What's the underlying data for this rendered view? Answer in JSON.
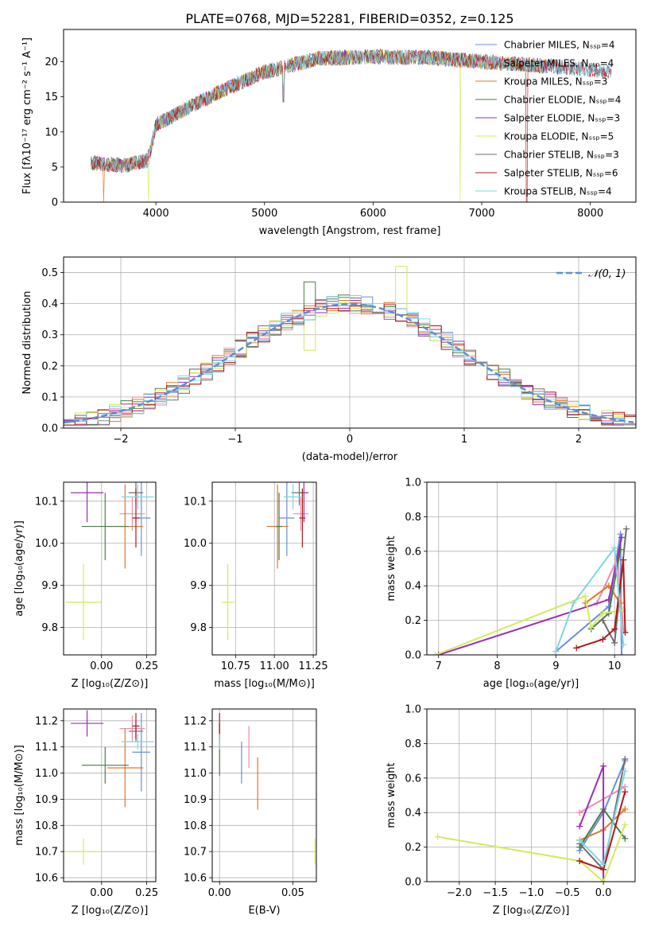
{
  "title": "PLATE=0768, MJD=52281, FIBERID=0352, z=0.125",
  "colors": {
    "Chabrier MILES": "#6a8fd6",
    "Salpeter MILES": "#f08bb0",
    "Kroupa MILES": "#e0782a",
    "Chabrier ELODIE": "#4f7a47",
    "Salpeter ELODIE": "#9b2fb0",
    "Kroupa ELODIE": "#d4ea5a",
    "Chabrier STELIB": "#6e6e6e",
    "Salpeter STELIB": "#b01818",
    "Kroupa STELIB": "#7fd6e2",
    "normal": "#5b8fd6",
    "grid": "#b0b0b0"
  },
  "chart_data": [
    {
      "type": "line",
      "panel": "spectrum",
      "xlabel": "wavelength [Angstrom, rest frame]",
      "ylabel": "Flux [fλ10⁻¹⁷ erg cm⁻² s⁻¹ A⁻¹]",
      "xlim": [
        3150,
        8420
      ],
      "ylim": [
        0,
        24.6
      ],
      "xticks": [
        "4000",
        "5000",
        "6000",
        "7000",
        "8000"
      ],
      "yticks": [
        "0",
        "5",
        "10",
        "15",
        "20"
      ],
      "grid": false,
      "legend_position": "upper right",
      "legend": [
        "Chabrier MILES, Nₛₛₚ=4",
        "Salpeter MILES, Nₛₛₚ=4",
        "Kroupa MILES, Nₛₛₚ=3",
        "Chabrier ELODIE, Nₛₛₚ=4",
        "Salpeter ELODIE, Nₛₛₚ=3",
        "Kroupa ELODIE, Nₛₛₚ=5",
        "Chabrier STELIB, Nₛₛₚ=3",
        "Salpeter STELIB, Nₛₛₚ=6",
        "Kroupa STELIB, Nₛₛₚ=4"
      ],
      "continuum": [
        [
          3400,
          5.6
        ],
        [
          3700,
          5.2
        ],
        [
          3930,
          6.0
        ],
        [
          4000,
          11.0
        ],
        [
          4300,
          13.5
        ],
        [
          4700,
          16.5
        ],
        [
          5000,
          18.5
        ],
        [
          5500,
          20.5
        ],
        [
          6000,
          20.7
        ],
        [
          6500,
          20.6
        ],
        [
          7000,
          20.0
        ],
        [
          7500,
          19.5
        ],
        [
          8000,
          18.9
        ],
        [
          8200,
          18.5
        ]
      ],
      "absorption_features": [
        [
          3934,
          0.4
        ],
        [
          5175,
          12.0
        ],
        [
          5890,
          15.5
        ],
        [
          6800,
          0.0
        ],
        [
          7415,
          0.0
        ],
        [
          3520,
          0.0
        ]
      ]
    },
    {
      "type": "area",
      "panel": "residuals",
      "xlabel": "(data-model)/error",
      "ylabel": "Normed distribution",
      "xlim": [
        -2.5,
        2.5
      ],
      "ylim": [
        0,
        0.55
      ],
      "xticks": [
        "−2",
        "−1",
        "0",
        "1",
        "2"
      ],
      "yticks": [
        "0.0",
        "0.1",
        "0.2",
        "0.3",
        "0.4",
        "0.5"
      ],
      "grid": true,
      "legend": [
        "𝒩(0, 1)"
      ],
      "legend_position": "upper right",
      "bin_width": 0.1
    },
    {
      "type": "scatter",
      "panel": "age-vs-Z",
      "xlabel": "Z [log₁₀(Z/Z⊙)]",
      "ylabel": "age  [log₁₀(age/yr)]",
      "xlim": [
        -0.21,
        0.3
      ],
      "ylim": [
        9.735,
        10.145
      ],
      "xticks": [
        "0.00",
        "0.25"
      ],
      "yticks": [
        "9.8",
        "9.9",
        "10.0",
        "10.1"
      ],
      "grid": true,
      "points": [
        {
          "model": "Chabrier MILES",
          "x": 0.22,
          "y": 10.06,
          "xerr": 0.05,
          "yerr": 0.09
        },
        {
          "model": "Salpeter MILES",
          "x": 0.17,
          "y": 10.07,
          "xerr": 0.07,
          "yerr": 0.04
        },
        {
          "model": "Kroupa MILES",
          "x": 0.13,
          "y": 10.04,
          "xerr": 0.1,
          "yerr": 0.1
        },
        {
          "model": "Chabrier ELODIE",
          "x": 0.02,
          "y": 10.04,
          "xerr": 0.13,
          "yerr": 0.08
        },
        {
          "model": "Salpeter ELODIE",
          "x": -0.08,
          "y": 10.12,
          "xerr": 0.09,
          "yerr": 0.07
        },
        {
          "model": "Kroupa ELODIE",
          "x": -0.1,
          "y": 9.86,
          "xerr": 0.1,
          "yerr": 0.09
        },
        {
          "model": "Chabrier STELIB",
          "x": 0.19,
          "y": 10.12,
          "xerr": 0.04,
          "yerr": 0.03
        },
        {
          "model": "Salpeter STELIB",
          "x": 0.19,
          "y": 10.06,
          "xerr": 0.02,
          "yerr": 0.07
        },
        {
          "model": "Kroupa STELIB",
          "x": 0.2,
          "y": 10.11,
          "xerr": 0.09,
          "yerr": 0.03
        }
      ]
    },
    {
      "type": "scatter",
      "panel": "age-vs-mass",
      "xlabel": "mass [log₁₀(M/M⊙)]",
      "xlim": [
        10.6,
        11.27
      ],
      "ylim": [
        9.735,
        10.145
      ],
      "xticks": [
        "10.75",
        "11.00",
        "11.25"
      ],
      "yticks": [
        "9.8",
        "9.9",
        "10.0",
        "10.1"
      ],
      "grid": true,
      "points": [
        {
          "model": "Chabrier MILES",
          "x": 11.08,
          "y": 10.06,
          "xerr": 0.05,
          "yerr": 0.09
        },
        {
          "model": "Salpeter MILES",
          "x": 11.17,
          "y": 10.07,
          "xerr": 0.05,
          "yerr": 0.04
        },
        {
          "model": "Kroupa MILES",
          "x": 11.02,
          "y": 10.04,
          "xerr": 0.07,
          "yerr": 0.1
        },
        {
          "model": "Chabrier ELODIE",
          "x": 11.03,
          "y": 10.04,
          "xerr": 0.02,
          "yerr": 0.08
        },
        {
          "model": "Salpeter ELODIE",
          "x": 11.19,
          "y": 10.12,
          "xerr": 0.03,
          "yerr": 0.07
        },
        {
          "model": "Kroupa ELODIE",
          "x": 10.7,
          "y": 9.86,
          "xerr": 0.04,
          "yerr": 0.09
        },
        {
          "model": "Chabrier STELIB",
          "x": 11.16,
          "y": 10.12,
          "xerr": 0.05,
          "yerr": 0.03
        },
        {
          "model": "Salpeter STELIB",
          "x": 11.18,
          "y": 10.06,
          "xerr": 0.02,
          "yerr": 0.07
        },
        {
          "model": "Kroupa STELIB",
          "x": 11.12,
          "y": 10.11,
          "xerr": 0.06,
          "yerr": 0.03
        }
      ]
    },
    {
      "type": "line",
      "panel": "mass-weight-vs-age",
      "xlabel": "age  [log₁₀(age/yr)]",
      "ylabel": "mass weight",
      "xlim": [
        6.8,
        10.35
      ],
      "ylim": [
        0,
        1
      ],
      "xticks": [
        "7",
        "8",
        "9",
        "10"
      ],
      "yticks": [
        "0.0",
        "0.2",
        "0.4",
        "0.6",
        "0.8",
        "1.0"
      ],
      "grid": true,
      "series": [
        {
          "model": "Chabrier MILES",
          "points": [
            [
              9.0,
              0.02
            ],
            [
              9.9,
              0.28
            ],
            [
              10.1,
              0.7
            ],
            [
              10.12,
              0.0
            ]
          ]
        },
        {
          "model": "Salpeter MILES",
          "points": [
            [
              9.7,
              0.3
            ],
            [
              10.05,
              0.56
            ],
            [
              10.15,
              0.14
            ]
          ]
        },
        {
          "model": "Kroupa MILES",
          "points": [
            [
              9.5,
              0.3
            ],
            [
              9.9,
              0.4
            ],
            [
              10.1,
              0.3
            ]
          ]
        },
        {
          "model": "Chabrier ELODIE",
          "points": [
            [
              9.6,
              0.15
            ],
            [
              9.9,
              0.24
            ],
            [
              10.1,
              0.61
            ]
          ]
        },
        {
          "model": "Salpeter ELODIE",
          "points": [
            [
              7.0,
              0.0
            ],
            [
              9.9,
              0.32
            ],
            [
              10.12,
              0.68
            ]
          ]
        },
        {
          "model": "Kroupa ELODIE",
          "points": [
            [
              6.95,
              0.0
            ],
            [
              9.5,
              0.34
            ],
            [
              9.6,
              0.16
            ],
            [
              9.8,
              0.24
            ],
            [
              10.15,
              0.26
            ]
          ]
        },
        {
          "model": "Chabrier STELIB",
          "points": [
            [
              9.8,
              0.2
            ],
            [
              10.0,
              0.07
            ],
            [
              10.2,
              0.73
            ]
          ]
        },
        {
          "model": "Salpeter STELIB",
          "points": [
            [
              9.35,
              0.04
            ],
            [
              9.8,
              0.09
            ],
            [
              10.0,
              0.15
            ],
            [
              10.15,
              0.55
            ],
            [
              10.18,
              0.13
            ]
          ]
        },
        {
          "model": "Kroupa STELIB",
          "points": [
            [
              9.0,
              0.02
            ],
            [
              9.3,
              0.3
            ],
            [
              10.0,
              0.62
            ],
            [
              10.15,
              0.06
            ]
          ]
        }
      ]
    },
    {
      "type": "scatter",
      "panel": "mass-vs-Z",
      "xlabel": "Z [log₁₀(Z/Z⊙)]",
      "ylabel": "mass [log₁₀(M/M⊙)]",
      "xlim": [
        -0.21,
        0.3
      ],
      "ylim": [
        10.585,
        11.245
      ],
      "xticks": [
        "0.00",
        "0.25"
      ],
      "yticks": [
        "10.6",
        "10.7",
        "10.8",
        "10.9",
        "11.0",
        "11.1",
        "11.2"
      ],
      "grid": true,
      "points": [
        {
          "model": "Chabrier MILES",
          "x": 0.22,
          "y": 11.08,
          "xerr": 0.05,
          "yerr": 0.15
        },
        {
          "model": "Salpeter MILES",
          "x": 0.17,
          "y": 11.17,
          "xerr": 0.07,
          "yerr": 0.05
        },
        {
          "model": "Kroupa MILES",
          "x": 0.13,
          "y": 11.02,
          "xerr": 0.1,
          "yerr": 0.15
        },
        {
          "model": "Chabrier ELODIE",
          "x": 0.02,
          "y": 11.03,
          "xerr": 0.13,
          "yerr": 0.07
        },
        {
          "model": "Salpeter ELODIE",
          "x": -0.08,
          "y": 11.19,
          "xerr": 0.09,
          "yerr": 0.05
        },
        {
          "model": "Kroupa ELODIE",
          "x": -0.1,
          "y": 10.7,
          "xerr": 0.1,
          "yerr": 0.05
        },
        {
          "model": "Chabrier STELIB",
          "x": 0.19,
          "y": 11.16,
          "xerr": 0.04,
          "yerr": 0.04
        },
        {
          "model": "Salpeter STELIB",
          "x": 0.19,
          "y": 11.18,
          "xerr": 0.02,
          "yerr": 0.05
        },
        {
          "model": "Kroupa STELIB",
          "x": 0.2,
          "y": 11.12,
          "xerr": 0.09,
          "yerr": 0.03
        }
      ]
    },
    {
      "type": "scatter",
      "panel": "mass-vs-EBV",
      "xlabel": "E(B-V)",
      "xlim": [
        -0.005,
        0.066
      ],
      "ylim": [
        10.585,
        11.245
      ],
      "xticks": [
        "0.00",
        "0.05"
      ],
      "yticks": [
        "10.6",
        "10.7",
        "10.8",
        "10.9",
        "11.0",
        "11.1",
        "11.2"
      ],
      "grid": true,
      "points": [
        {
          "model": "Chabrier MILES",
          "x": 0.015,
          "y": 11.04,
          "yerr": 0.08
        },
        {
          "model": "Salpeter MILES",
          "x": 0.02,
          "y": 11.1,
          "yerr": 0.08
        },
        {
          "model": "Kroupa MILES",
          "x": 0.026,
          "y": 10.96,
          "yerr": 0.1
        },
        {
          "model": "Chabrier ELODIE",
          "x": 0.0,
          "y": 11.07,
          "yerr": 0.08
        },
        {
          "model": "Salpeter ELODIE",
          "x": 0.0,
          "y": 11.15,
          "yerr": 0.04
        },
        {
          "model": "Kroupa ELODIE",
          "x": 0.065,
          "y": 10.7,
          "yerr": 0.05
        },
        {
          "model": "Chabrier STELIB",
          "x": 0.0,
          "y": 11.14,
          "yerr": 0.05
        },
        {
          "model": "Salpeter STELIB",
          "x": 0.0,
          "y": 11.18,
          "yerr": 0.05
        },
        {
          "model": "Kroupa STELIB",
          "x": 0.0,
          "y": 11.12,
          "yerr": 0.03
        }
      ]
    },
    {
      "type": "line",
      "panel": "mass-weight-vs-Z",
      "xlabel": "Z [log₁₀(Z/Z⊙)]",
      "ylabel": "mass weight",
      "xlim": [
        -2.45,
        0.44
      ],
      "ylim": [
        0,
        1
      ],
      "xticks": [
        "−2.0",
        "−1.5",
        "−1.0",
        "−0.5",
        "0.0"
      ],
      "yticks": [
        "0.0",
        "0.2",
        "0.4",
        "0.6",
        "0.8",
        "1.0"
      ],
      "grid": true,
      "series": [
        {
          "model": "Chabrier MILES",
          "points": [
            [
              -0.33,
              0.18
            ],
            [
              0.0,
              0.4
            ],
            [
              0.3,
              0.7
            ]
          ]
        },
        {
          "model": "Salpeter MILES",
          "points": [
            [
              -0.33,
              0.4
            ],
            [
              0.3,
              0.55
            ]
          ]
        },
        {
          "model": "Kroupa MILES",
          "points": [
            [
              -0.33,
              0.24
            ],
            [
              0.0,
              0.3
            ],
            [
              0.3,
              0.42
            ]
          ]
        },
        {
          "model": "Chabrier ELODIE",
          "points": [
            [
              -0.33,
              0.2
            ],
            [
              0.0,
              0.42
            ],
            [
              0.3,
              0.25
            ]
          ]
        },
        {
          "model": "Salpeter ELODIE",
          "points": [
            [
              -0.33,
              0.32
            ],
            [
              0.0,
              0.67
            ],
            [
              0.0,
              0.0
            ]
          ]
        },
        {
          "model": "Kroupa ELODIE",
          "points": [
            [
              -2.3,
              0.26
            ],
            [
              -0.33,
              0.12
            ],
            [
              0.0,
              0.0
            ],
            [
              0.3,
              0.33
            ]
          ]
        },
        {
          "model": "Chabrier STELIB",
          "points": [
            [
              -0.33,
              0.22
            ],
            [
              0.0,
              0.07
            ],
            [
              0.3,
              0.71
            ]
          ]
        },
        {
          "model": "Salpeter STELIB",
          "points": [
            [
              -0.33,
              0.12
            ],
            [
              0.0,
              0.07
            ],
            [
              0.3,
              0.52
            ]
          ]
        },
        {
          "model": "Kroupa STELIB",
          "points": [
            [
              -0.33,
              0.24
            ],
            [
              0.0,
              0.1
            ],
            [
              0.3,
              0.64
            ]
          ]
        }
      ]
    }
  ]
}
